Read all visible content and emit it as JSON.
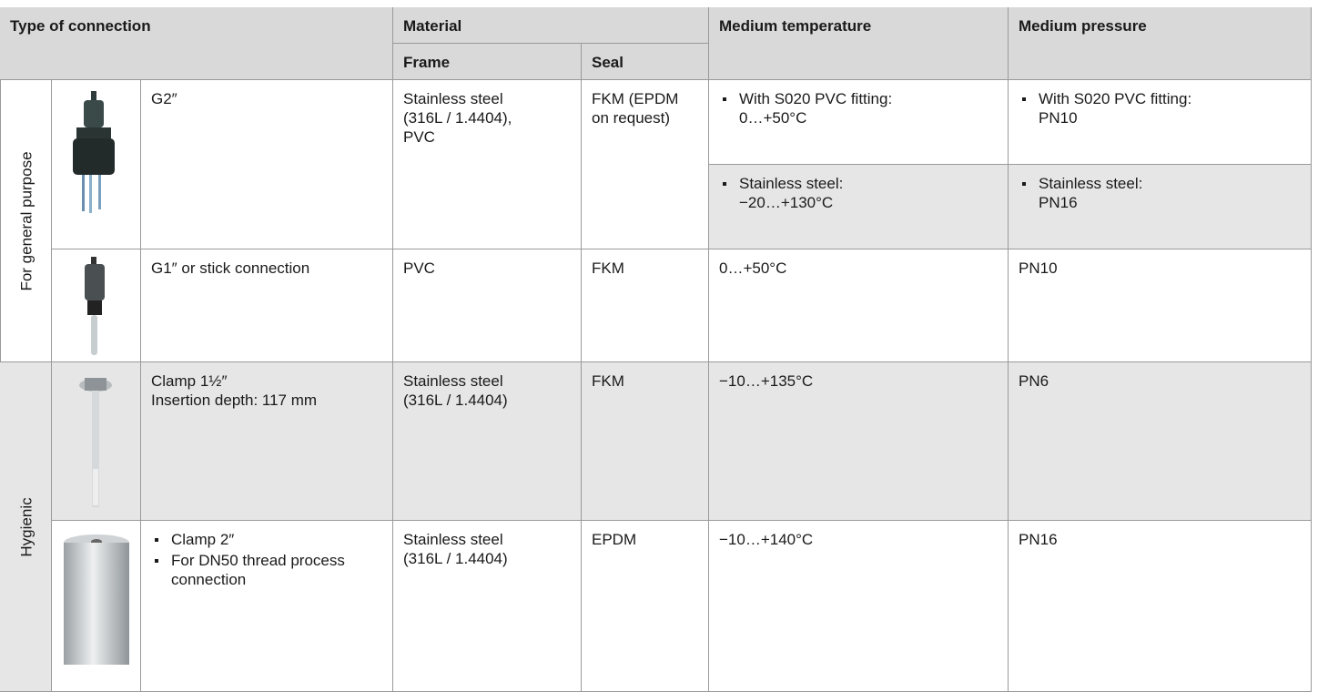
{
  "header": {
    "type_of_connection": "Type of connection",
    "material": "Material",
    "frame": "Frame",
    "seal": "Seal",
    "medium_temperature": "Medium temperature",
    "medium_pressure": "Medium pressure"
  },
  "groups": [
    {
      "label": "For general purpose",
      "rows": [
        {
          "connection": [
            "G2″"
          ],
          "frame": "Stainless steel (316L / 1.4404), PVC",
          "seal": "FKM (EPDM on request)",
          "conditions": [
            {
              "temperature": [
                "With S020 PVC fitting:",
                "0…+50°C"
              ],
              "pressure": [
                "With S020 PVC fitting:",
                "PN10"
              ]
            },
            {
              "temperature": [
                "Stainless steel:",
                "−20…+130°C"
              ],
              "pressure": [
                "Stainless steel:",
                "PN16"
              ]
            }
          ]
        },
        {
          "connection": [
            "G1″ or stick connection"
          ],
          "frame": "PVC",
          "seal": "FKM",
          "temperature": "0…+50°C",
          "pressure": "PN10"
        }
      ]
    },
    {
      "label": "Hygienic",
      "rows": [
        {
          "connection": [
            "Clamp 1½″",
            "Insertion depth: 117 mm"
          ],
          "frame": "Stainless steel (316L / 1.4404)",
          "seal": "FKM",
          "temperature": "−10…+135°C",
          "pressure": "PN6"
        },
        {
          "connection_bullets": [
            "Clamp 2″",
            "For DN50 thread process connection"
          ],
          "frame": "Stainless steel (316L / 1.4404)",
          "seal": "EPDM",
          "temperature": "−10…+140°C",
          "pressure": "PN16"
        }
      ]
    }
  ]
}
